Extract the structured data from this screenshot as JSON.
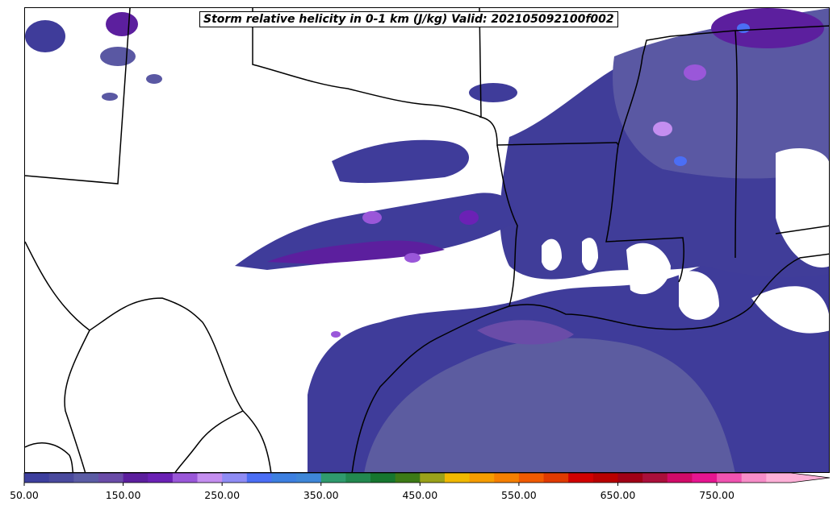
{
  "title": "Storm relative helicity in 0-1 km (J/kg) Valid: 202105092100f002",
  "colorbar": {
    "min": 50,
    "max": 825,
    "step": 25,
    "extend": "max",
    "tick_labels": [
      "50.00",
      "150.00",
      "250.00",
      "350.00",
      "450.00",
      "550.00",
      "650.00",
      "750.00"
    ],
    "tick_values": [
      50,
      150,
      250,
      350,
      450,
      550,
      650,
      750
    ],
    "colors": [
      "#3d3f9e",
      "#4a4a9e",
      "#5b5ca5",
      "#6a4ca8",
      "#5c1f9e",
      "#6b21b5",
      "#9a57d9",
      "#c48ef0",
      "#8f8cf5",
      "#4b6ef5",
      "#3c7fe0",
      "#3e86d8",
      "#2f9a6d",
      "#22884f",
      "#16762f",
      "#3c7a16",
      "#9aa11a",
      "#f0b800",
      "#f59c00",
      "#f57f00",
      "#f05a00",
      "#e03a00",
      "#d10000",
      "#b80000",
      "#a00016",
      "#aa0f3a",
      "#d10a68",
      "#e61590",
      "#f053b0",
      "#f78dc8",
      "#ffb0d8"
    ]
  }
}
